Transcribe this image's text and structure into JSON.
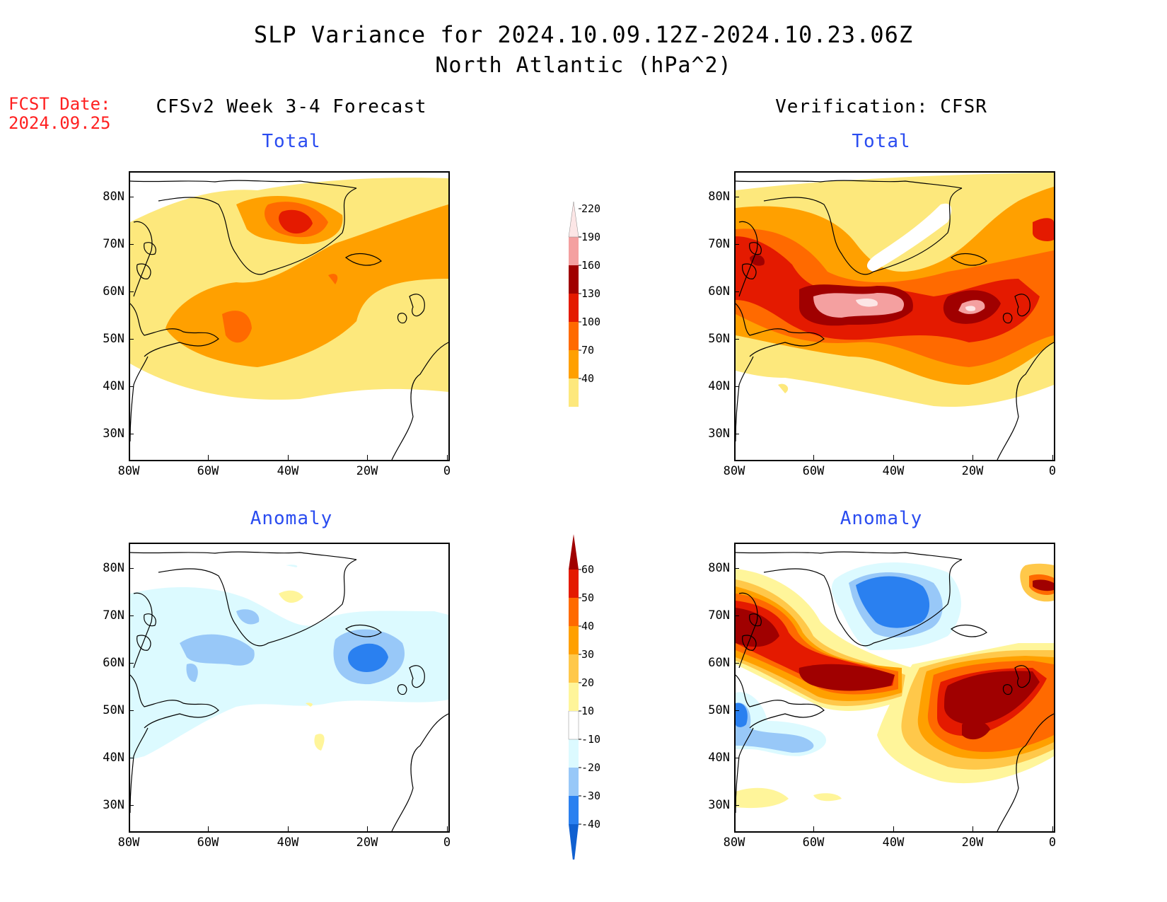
{
  "title": {
    "line1": "SLP Variance for 2024.10.09.12Z-2024.10.23.06Z",
    "line2": "North Atlantic (hPa^2)"
  },
  "fcst": {
    "label": "FCST Date:",
    "date": "2024.09.25"
  },
  "columns": {
    "left": "CFSv2 Week 3-4 Forecast",
    "right": "Verification: CFSR"
  },
  "panels": {
    "fc_total": "Total",
    "vf_total": "Total",
    "fc_anom": "Anomaly",
    "vf_anom": "Anomaly"
  },
  "axes": {
    "lat_labels": [
      "80N",
      "70N",
      "60N",
      "50N",
      "40N",
      "30N"
    ],
    "lon_labels": [
      "80W",
      "60W",
      "40W",
      "20W",
      "0"
    ]
  },
  "colorbars": {
    "total": {
      "levels": [
        "40",
        "70",
        "100",
        "130",
        "160",
        "190",
        "220"
      ],
      "colors": [
        "#fde87c",
        "#ffa000",
        "#ff6a00",
        "#e41a00",
        "#a00000",
        "#f4a0a0",
        "#fce6e6"
      ]
    },
    "anomaly": {
      "levels": [
        "-40",
        "-30",
        "-20",
        "-10",
        "10",
        "20",
        "30",
        "40",
        "50",
        "60"
      ],
      "colors": [
        "#1060d0",
        "#2a80f0",
        "#98c8f8",
        "#dcfaff",
        "#ffffff",
        "#fff59a",
        "#ffc84a",
        "#ffa000",
        "#ff6a00",
        "#e41a00",
        "#a00000"
      ]
    }
  }
}
